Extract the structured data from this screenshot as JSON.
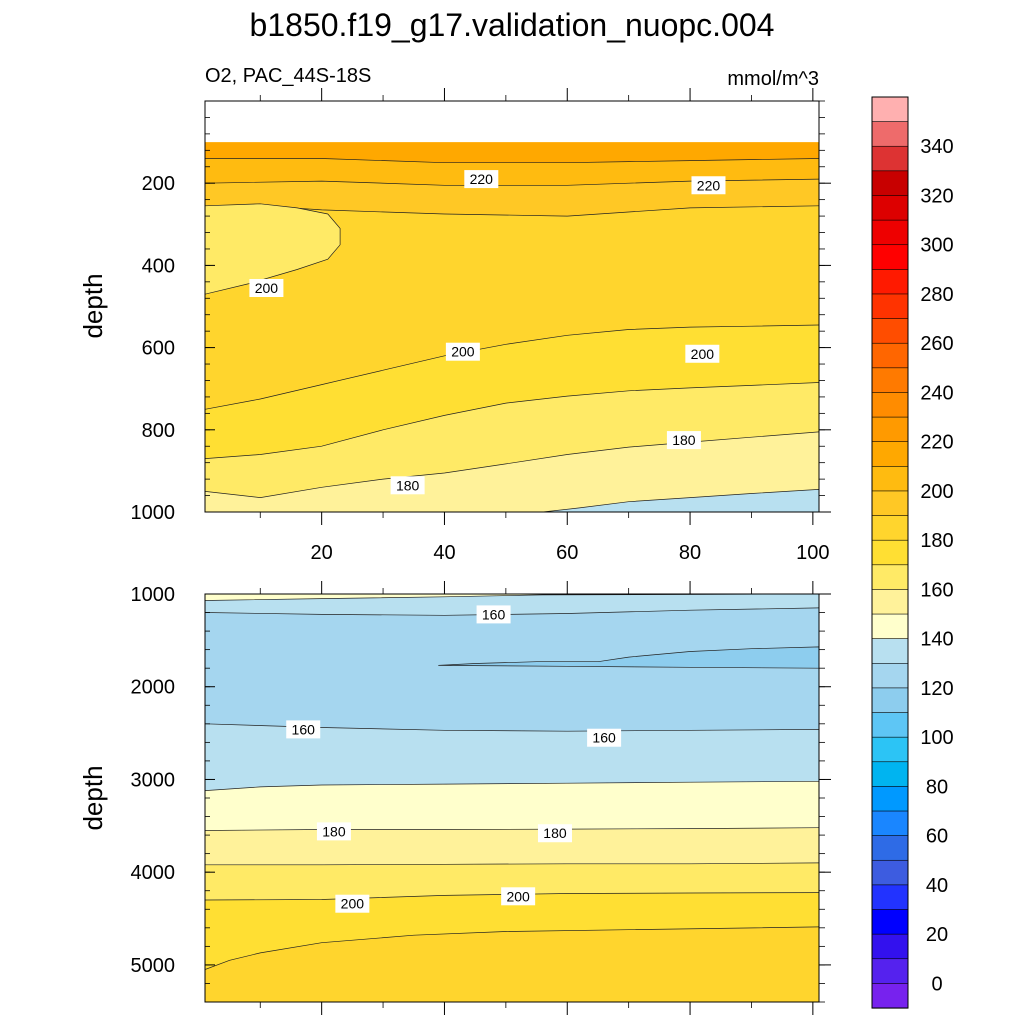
{
  "figure": {
    "title": "b1850.f19_g17.validation_nuopc.004",
    "variable": "O2, PAC_44S-18S",
    "units": "mmol/m^3"
  },
  "chart_data": [
    {
      "type": "contour",
      "panel": "upper",
      "xlabel": "",
      "ylabel": "depth",
      "xlim": [
        1,
        101
      ],
      "ylim": [
        0,
        1000
      ],
      "x_ticks": [
        "20",
        "40",
        "60",
        "80",
        "100"
      ],
      "y_ticks": [
        "200",
        "400",
        "600",
        "800",
        "1000"
      ],
      "x_tick_values": [
        20,
        40,
        60,
        80,
        100
      ],
      "y_tick_values": [
        200,
        400,
        600,
        800,
        1000
      ],
      "contour_labels": [
        {
          "text": "220",
          "x": 46,
          "depth": 190
        },
        {
          "text": "220",
          "x": 83,
          "depth": 205
        },
        {
          "text": "200",
          "x": 11,
          "depth": 455
        },
        {
          "text": "200",
          "x": 43,
          "depth": 610
        },
        {
          "text": "200",
          "x": 82,
          "depth": 615
        },
        {
          "text": "180",
          "x": 34,
          "depth": 935
        },
        {
          "text": "180",
          "x": 79,
          "depth": 825
        }
      ],
      "bands": [
        {
          "level": 240,
          "color": "#ffa800",
          "boundary": [
            [
              1,
              100
            ],
            [
              101,
              100
            ]
          ]
        },
        {
          "level": 230,
          "color": "#ffbb10",
          "boundary": [
            [
              1,
              140
            ],
            [
              20,
              140
            ],
            [
              40,
              150
            ],
            [
              60,
              150
            ],
            [
              80,
              145
            ],
            [
              101,
              140
            ]
          ]
        },
        {
          "level": 220,
          "color": "#ffc825",
          "boundary": [
            [
              1,
              200
            ],
            [
              20,
              195
            ],
            [
              40,
              205
            ],
            [
              60,
              205
            ],
            [
              80,
              195
            ],
            [
              101,
              190
            ]
          ]
        },
        {
          "level": 210,
          "color": "#ffd52d",
          "boundary": [
            [
              1,
              265
            ],
            [
              10,
              255
            ],
            [
              20,
              265
            ],
            [
              40,
              275
            ],
            [
              60,
              280
            ],
            [
              80,
              260
            ],
            [
              101,
              255
            ]
          ]
        },
        {
          "level": 200,
          "color": "#ffdf33",
          "boundary": [
            [
              1,
              750
            ],
            [
              10,
              725
            ],
            [
              20,
              690
            ],
            [
              30,
              655
            ],
            [
              40,
              620
            ],
            [
              50,
              592
            ],
            [
              60,
              570
            ],
            [
              70,
              556
            ],
            [
              80,
              550
            ],
            [
              90,
              548
            ],
            [
              101,
              545
            ]
          ]
        },
        {
          "level": 190,
          "color": "#ffea66",
          "boundary": [
            [
              1,
              870
            ],
            [
              10,
              860
            ],
            [
              20,
              840
            ],
            [
              30,
              800
            ],
            [
              40,
              765
            ],
            [
              50,
              735
            ],
            [
              60,
              718
            ],
            [
              70,
              705
            ],
            [
              80,
              698
            ],
            [
              90,
              692
            ],
            [
              101,
              685
            ]
          ]
        },
        {
          "level": 180,
          "color": "#fff29a",
          "boundary": [
            [
              1,
              950
            ],
            [
              10,
              965
            ],
            [
              20,
              940
            ],
            [
              30,
              920
            ],
            [
              40,
              905
            ],
            [
              50,
              883
            ],
            [
              60,
              860
            ],
            [
              70,
              842
            ],
            [
              80,
              830
            ],
            [
              90,
              818
            ],
            [
              101,
              805
            ]
          ]
        },
        {
          "level": 170,
          "color": "#ffffcc",
          "boundary": [
            [
              1,
              1000
            ],
            [
              101,
              1000
            ]
          ]
        }
      ],
      "closed_regions": [
        {
          "level": 190,
          "color": "#ffea66",
          "outline": [
            [
              1,
              255
            ],
            [
              10,
              250
            ],
            [
              16,
              260
            ],
            [
              21,
              275
            ],
            [
              23,
              310
            ],
            [
              23,
              350
            ],
            [
              21,
              385
            ],
            [
              16,
              410
            ],
            [
              8,
              445
            ],
            [
              1,
              470
            ]
          ]
        },
        {
          "level": 160,
          "color": "#b8e0f0",
          "outline": [
            [
              56,
              1000
            ],
            [
              62,
              990
            ],
            [
              70,
              975
            ],
            [
              80,
              965
            ],
            [
              90,
              955
            ],
            [
              101,
              945
            ],
            [
              101,
              1000
            ]
          ]
        }
      ]
    },
    {
      "type": "contour",
      "panel": "lower",
      "xlabel": "",
      "ylabel": "depth",
      "xlim": [
        1,
        101
      ],
      "ylim": [
        1000,
        5400
      ],
      "x_ticks": [],
      "y_ticks": [
        "1000",
        "2000",
        "3000",
        "4000",
        "5000"
      ],
      "y_tick_values": [
        1000,
        2000,
        3000,
        4000,
        5000
      ],
      "contour_labels": [
        {
          "text": "160",
          "x": 48,
          "depth": 1220
        },
        {
          "text": "160",
          "x": 17,
          "depth": 2460
        },
        {
          "text": "160",
          "x": 66,
          "depth": 2550
        },
        {
          "text": "180",
          "x": 22,
          "depth": 3560
        },
        {
          "text": "180",
          "x": 58,
          "depth": 3580
        },
        {
          "text": "200",
          "x": 25,
          "depth": 4340
        },
        {
          "text": "200",
          "x": 52,
          "depth": 4260
        }
      ],
      "bands": [
        {
          "level": 170,
          "color": "#ffffcc",
          "boundary": [
            [
              1,
              1000
            ],
            [
              101,
              1000
            ]
          ]
        },
        {
          "level": 160,
          "color": "#b8e0f0",
          "boundary": [
            [
              1,
              1070
            ],
            [
              20,
              1050
            ],
            [
              40,
              1030
            ],
            [
              56,
              1010
            ],
            [
              101,
              1000
            ]
          ]
        },
        {
          "level": 150,
          "color": "#a5d6ef",
          "boundary": [
            [
              1,
              1200
            ],
            [
              20,
              1220
            ],
            [
              40,
              1230
            ],
            [
              60,
              1210
            ],
            [
              80,
              1175
            ],
            [
              101,
              1150
            ]
          ]
        },
        {
          "level": 160,
          "color": "#b8e0f0",
          "boundary": [
            [
              1,
              2400
            ],
            [
              20,
              2440
            ],
            [
              40,
              2470
            ],
            [
              60,
              2480
            ],
            [
              80,
              2470
            ],
            [
              101,
              2460
            ]
          ]
        },
        {
          "level": 170,
          "color": "#ffffcc",
          "boundary": [
            [
              1,
              3120
            ],
            [
              10,
              3080
            ],
            [
              20,
              3060
            ],
            [
              40,
              3050
            ],
            [
              60,
              3040
            ],
            [
              80,
              3030
            ],
            [
              101,
              3020
            ]
          ]
        },
        {
          "level": 180,
          "color": "#fff29a",
          "boundary": [
            [
              1,
              3550
            ],
            [
              20,
              3540
            ],
            [
              40,
              3540
            ],
            [
              60,
              3535
            ],
            [
              80,
              3530
            ],
            [
              101,
              3520
            ]
          ]
        },
        {
          "level": 190,
          "color": "#ffea66",
          "boundary": [
            [
              1,
              3920
            ],
            [
              20,
              3920
            ],
            [
              40,
              3915
            ],
            [
              60,
              3910
            ],
            [
              80,
              3910
            ],
            [
              101,
              3900
            ]
          ]
        },
        {
          "level": 200,
          "color": "#ffdf33",
          "boundary": [
            [
              1,
              4300
            ],
            [
              20,
              4295
            ],
            [
              40,
              4250
            ],
            [
              60,
              4230
            ],
            [
              80,
              4225
            ],
            [
              101,
              4220
            ]
          ]
        },
        {
          "level": 210,
          "color": "#ffd52d",
          "boundary": [
            [
              1,
              5050
            ],
            [
              5,
              4950
            ],
            [
              10,
              4870
            ],
            [
              20,
              4760
            ],
            [
              35,
              4680
            ],
            [
              50,
              4640
            ],
            [
              70,
              4620
            ],
            [
              101,
              4590
            ]
          ]
        }
      ],
      "closed_regions": [
        {
          "level": 140,
          "color": "#8dcdee",
          "outline": [
            [
              39,
              1770
            ],
            [
              45,
              1750
            ],
            [
              55,
              1730
            ],
            [
              65,
              1730
            ],
            [
              70,
              1680
            ],
            [
              80,
              1620
            ],
            [
              90,
              1590
            ],
            [
              101,
              1570
            ],
            [
              101,
              1800
            ],
            [
              80,
              1790
            ],
            [
              60,
              1780
            ],
            [
              39,
              1770
            ]
          ]
        }
      ]
    },
    {
      "type": "colorbar",
      "labels": [
        "340",
        "320",
        "300",
        "280",
        "260",
        "240",
        "220",
        "200",
        "180",
        "160",
        "140",
        "120",
        "100",
        "80",
        "60",
        "40",
        "20",
        "0"
      ],
      "levels": [
        0,
        10,
        20,
        30,
        40,
        50,
        60,
        70,
        80,
        90,
        100,
        110,
        120,
        130,
        140,
        150,
        160,
        170,
        180,
        190,
        200,
        210,
        220,
        230,
        240,
        250,
        260,
        270,
        280,
        290,
        300,
        310,
        320,
        330,
        340,
        350
      ],
      "colors": [
        "#ffb0b0",
        "#ee6b6b",
        "#dd3333",
        "#c80000",
        "#dd0000",
        "#ee0000",
        "#ff0000",
        "#ff1a00",
        "#ff3300",
        "#ff4d00",
        "#ff6600",
        "#ff7a00",
        "#ff8c00",
        "#ff9a00",
        "#ffa800",
        "#ffbb10",
        "#ffc825",
        "#ffd52d",
        "#ffdf33",
        "#ffea66",
        "#fff29a",
        "#ffffcc",
        "#b8e0f0",
        "#a5d6ef",
        "#8dcdee",
        "#5ec6f5",
        "#2cc4f5",
        "#00b4f0",
        "#0099ff",
        "#1a86ff",
        "#2e6be6",
        "#3d5ce0",
        "#2233ff",
        "#0000ff",
        "#3311ee",
        "#5522ee",
        "#7722ee"
      ]
    }
  ]
}
